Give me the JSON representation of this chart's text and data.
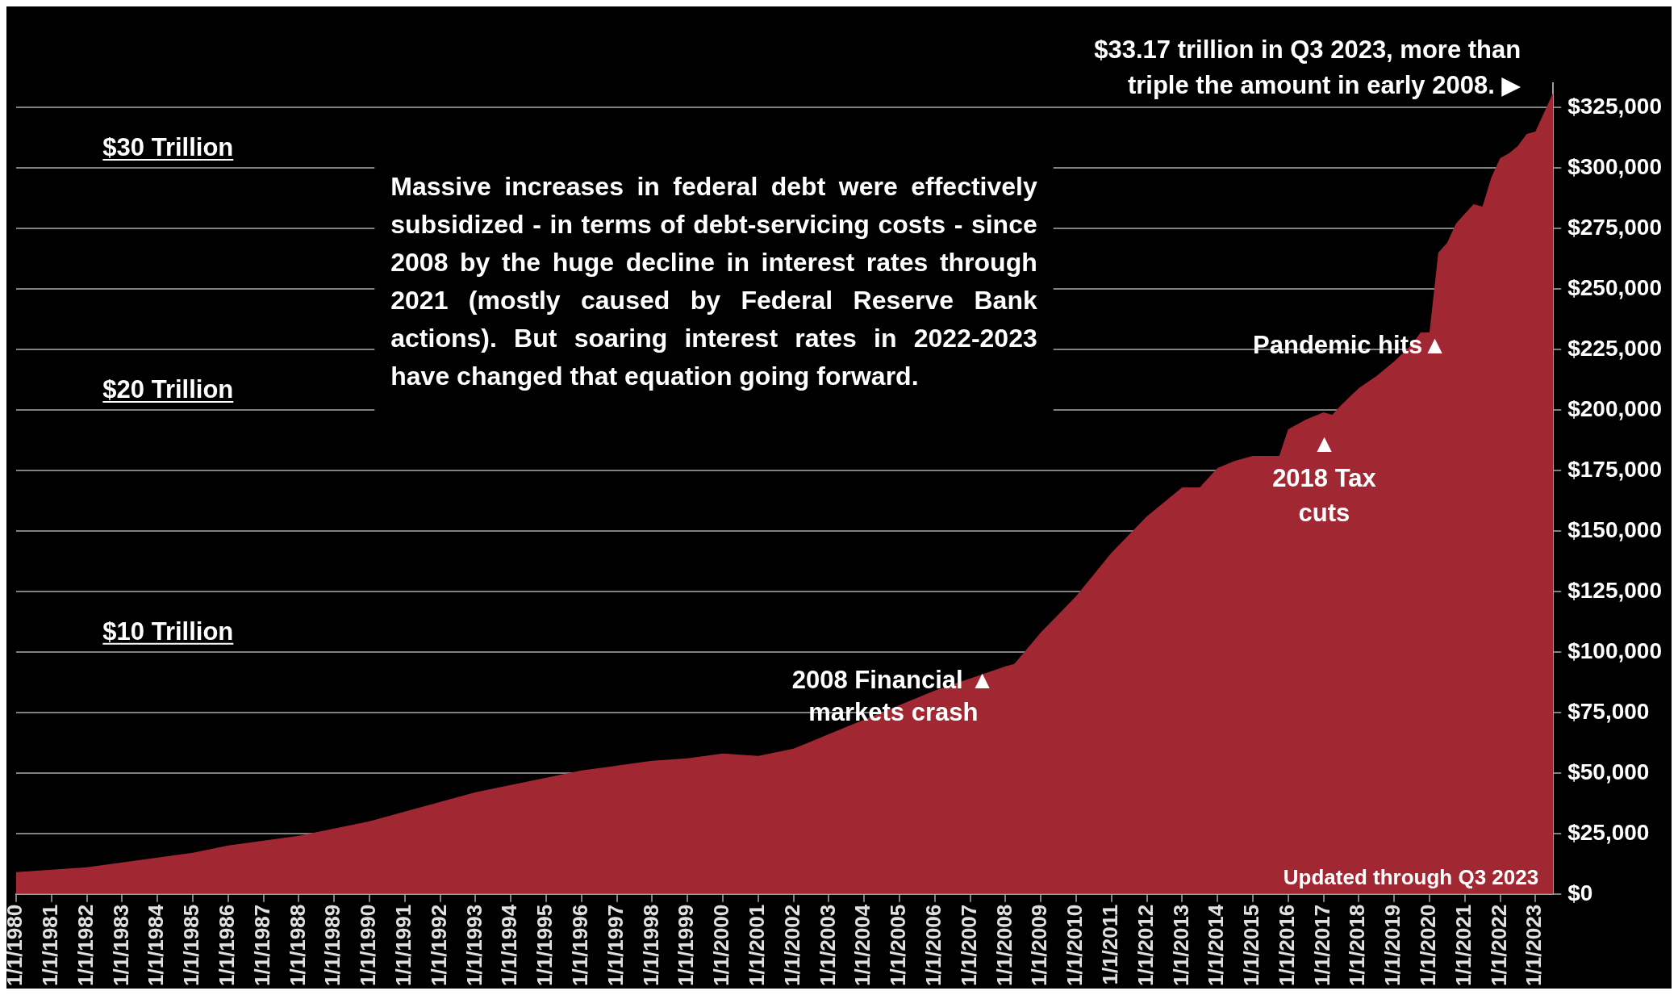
{
  "chart_data": {
    "type": "area",
    "color": "#a12832",
    "x": [
      "1980-01",
      "1981-01",
      "1982-01",
      "1983-01",
      "1984-01",
      "1985-01",
      "1986-01",
      "1987-01",
      "1988-01",
      "1989-01",
      "1990-01",
      "1991-01",
      "1992-01",
      "1993-01",
      "1994-01",
      "1995-01",
      "1996-01",
      "1997-01",
      "1998-01",
      "1999-01",
      "2000-01",
      "2001-01",
      "2002-01",
      "2003-01",
      "2004-01",
      "2005-01",
      "2006-01",
      "2007-01",
      "2008-01",
      "2008-04",
      "2009-01",
      "2010-01",
      "2011-01",
      "2012-01",
      "2013-01",
      "2013-07",
      "2014-01",
      "2014-07",
      "2015-01",
      "2015-10",
      "2016-01",
      "2016-07",
      "2017-01",
      "2017-04",
      "2017-07",
      "2018-01",
      "2018-07",
      "2019-01",
      "2019-07",
      "2019-10",
      "2020-01",
      "2020-04",
      "2020-07",
      "2020-10",
      "2021-01",
      "2021-04",
      "2021-07",
      "2021-10",
      "2022-01",
      "2022-04",
      "2022-07",
      "2022-10",
      "2023-01",
      "2023-07"
    ],
    "values": [
      9000,
      10000,
      11000,
      13000,
      15000,
      17000,
      20000,
      22000,
      24000,
      27000,
      30000,
      34000,
      38000,
      42000,
      45000,
      48000,
      51000,
      53000,
      55000,
      56000,
      58000,
      57000,
      60000,
      66000,
      72000,
      78000,
      84000,
      89000,
      94000,
      95000,
      108000,
      123000,
      141000,
      156000,
      168000,
      168000,
      176000,
      179000,
      181000,
      181000,
      192000,
      196000,
      199000,
      198000,
      202000,
      209000,
      214000,
      220000,
      227000,
      232000,
      232000,
      265000,
      269000,
      277000,
      281000,
      285000,
      284000,
      296000,
      304000,
      306000,
      309000,
      314000,
      315000,
      331000
    ],
    "xlim": [
      "1980-01",
      "2023-07"
    ],
    "xticks": [
      {
        "value": "1980-01-01",
        "label": "1/1/1980"
      },
      {
        "value": "1981-01-01",
        "label": "1/1/1981"
      },
      {
        "value": "1982-01-01",
        "label": "1/1/1982"
      },
      {
        "value": "1983-01-01",
        "label": "1/1/1983"
      },
      {
        "value": "1984-01-01",
        "label": "1/1/1984"
      },
      {
        "value": "1985-01-01",
        "label": "1/1/1985"
      },
      {
        "value": "1986-01-01",
        "label": "1/1/1986"
      },
      {
        "value": "1987-01-01",
        "label": "1/1/1987"
      },
      {
        "value": "1988-01-01",
        "label": "1/1/1988"
      },
      {
        "value": "1989-01-01",
        "label": "1/1/1989"
      },
      {
        "value": "1990-01-01",
        "label": "1/1/1990"
      },
      {
        "value": "1991-01-01",
        "label": "1/1/1991"
      },
      {
        "value": "1992-01-01",
        "label": "1/1/1992"
      },
      {
        "value": "1993-01-01",
        "label": "1/1/1993"
      },
      {
        "value": "1994-01-01",
        "label": "1/1/1994"
      },
      {
        "value": "1995-01-01",
        "label": "1/1/1995"
      },
      {
        "value": "1996-01-01",
        "label": "1/1/1996"
      },
      {
        "value": "1997-01-01",
        "label": "1/1/1997"
      },
      {
        "value": "1998-01-01",
        "label": "1/1/1998"
      },
      {
        "value": "1999-01-01",
        "label": "1/1/1999"
      },
      {
        "value": "2000-01-01",
        "label": "1/1/2000"
      },
      {
        "value": "2001-01-01",
        "label": "1/1/2001"
      },
      {
        "value": "2002-01-01",
        "label": "1/1/2002"
      },
      {
        "value": "2003-01-01",
        "label": "1/1/2003"
      },
      {
        "value": "2004-01-01",
        "label": "1/1/2004"
      },
      {
        "value": "2005-01-01",
        "label": "1/1/2005"
      },
      {
        "value": "2006-01-01",
        "label": "1/1/2006"
      },
      {
        "value": "2007-01-01",
        "label": "1/1/2007"
      },
      {
        "value": "2008-01-01",
        "label": "1/1/2008"
      },
      {
        "value": "2009-01-01",
        "label": "1/1/2009"
      },
      {
        "value": "2010-01-01",
        "label": "1/1/2010"
      },
      {
        "value": "2011-01-01",
        "label": "1/1/2011"
      },
      {
        "value": "2012-01-01",
        "label": "1/1/2012"
      },
      {
        "value": "2013-01-01",
        "label": "1/1/2013"
      },
      {
        "value": "2014-01-01",
        "label": "1/1/2014"
      },
      {
        "value": "2015-01-01",
        "label": "1/1/2015"
      },
      {
        "value": "2016-01-01",
        "label": "1/1/2016"
      },
      {
        "value": "2017-01-01",
        "label": "1/1/2017"
      },
      {
        "value": "2018-01-01",
        "label": "1/1/2018"
      },
      {
        "value": "2019-01-01",
        "label": "1/1/2019"
      },
      {
        "value": "2020-01-01",
        "label": "1/1/2020"
      },
      {
        "value": "2021-01-01",
        "label": "1/1/2021"
      },
      {
        "value": "2022-01-01",
        "label": "1/1/2022"
      },
      {
        "value": "2023-01-01",
        "label": "1/1/2023"
      }
    ],
    "ylim": [
      0,
      335000
    ],
    "yticks": [
      {
        "value": 0,
        "label": "$0"
      },
      {
        "value": 25000,
        "label": "$25,000"
      },
      {
        "value": 50000,
        "label": "$50,000"
      },
      {
        "value": 75000,
        "label": "$75,000"
      },
      {
        "value": 100000,
        "label": "$100,000"
      },
      {
        "value": 125000,
        "label": "$125,000"
      },
      {
        "value": 150000,
        "label": "$150,000"
      },
      {
        "value": 175000,
        "label": "$175,000"
      },
      {
        "value": 200000,
        "label": "$200,000"
      },
      {
        "value": 225000,
        "label": "$225,000"
      },
      {
        "value": 250000,
        "label": "$250,000"
      },
      {
        "value": 275000,
        "label": "$275,000"
      },
      {
        "value": 300000,
        "label": "$300,000"
      },
      {
        "value": 325000,
        "label": "$325,000"
      }
    ],
    "grid": "y",
    "annotations": [
      "$30 Trillion",
      "$20 Trillion",
      "$10 Trillion",
      "Massive increases in federal debt were effectively subsidized  - in terms of debt-servicing costs - since 2008 by the huge decline in interest rates through 2021 (mostly caused by Federal Reserve Bank actions). But soaring interest rates in 2022-2023 have changed that equation going forward.",
      {
        "text": "2008 Financial ▲\nmarkets crash",
        "x": "2008-04",
        "y": 95000
      },
      {
        "text": "▲\n2018 Tax\ncuts",
        "x": "2017-04",
        "y": 198000
      },
      {
        "text": "Pandemic hits▲",
        "x": "2020-01",
        "y": 232000
      },
      {
        "text": "$33.17 trillion in Q3 2023, more than\ntriple the amount in early 2008. ▶",
        "x": "2023-07",
        "y": 331000
      },
      "Updated through Q3 2023"
    ]
  }
}
